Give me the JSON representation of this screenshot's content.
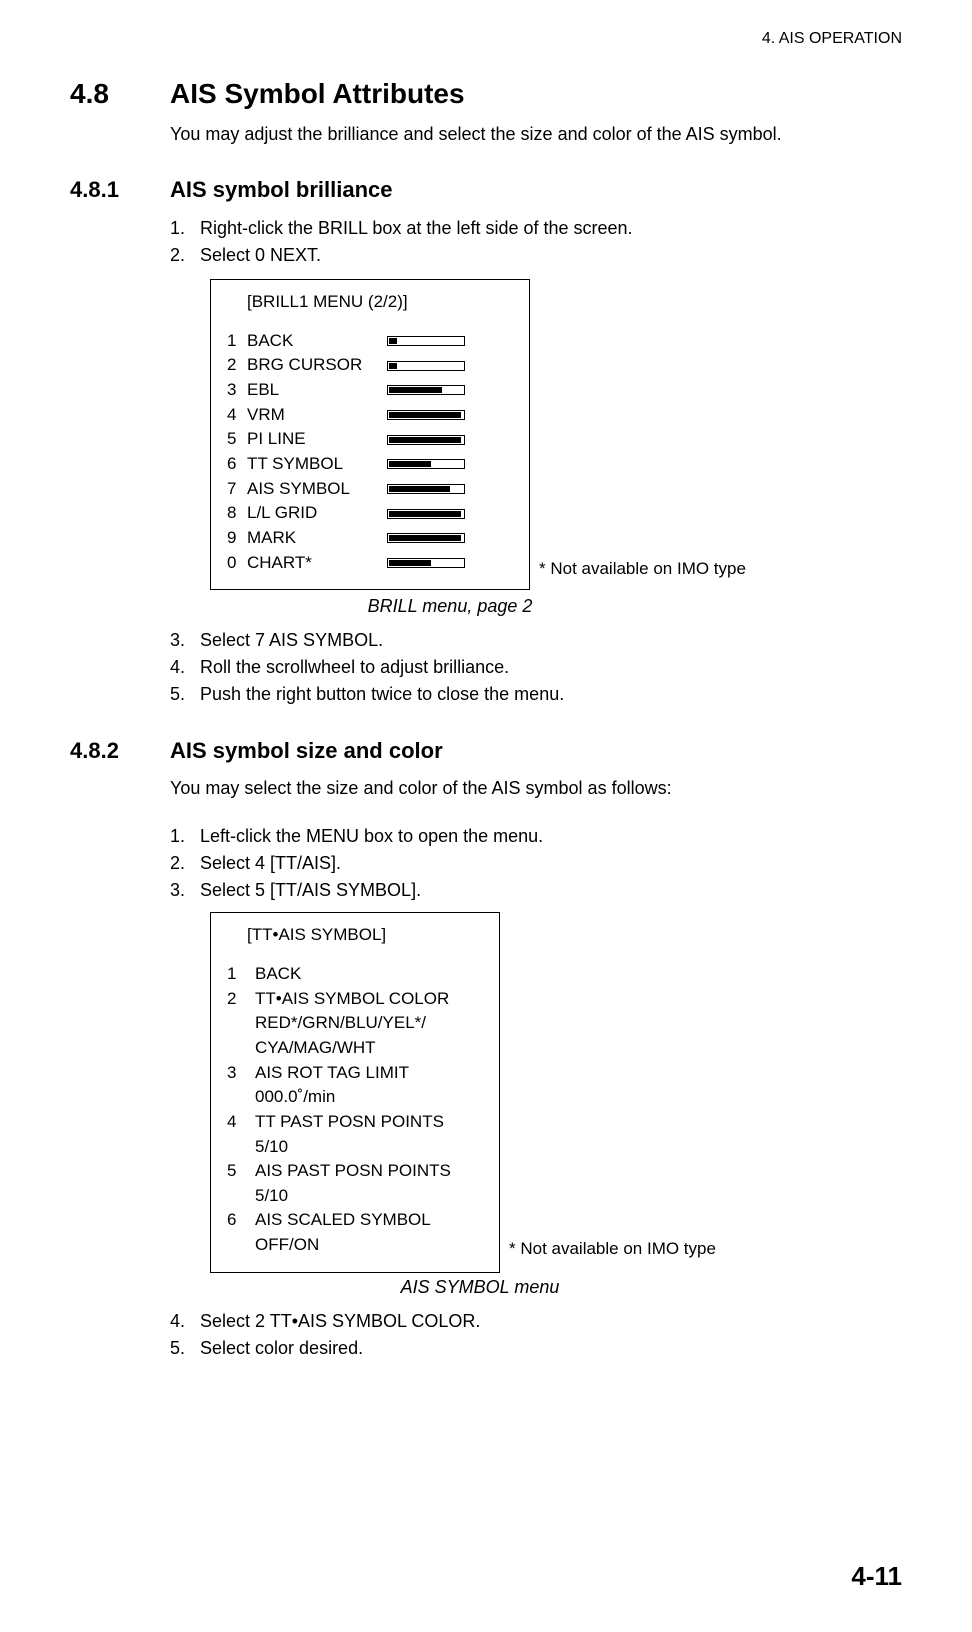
{
  "chapter_header": "4. AIS OPERATION",
  "section": {
    "num": "4.8",
    "title": "AIS Symbol Attributes"
  },
  "intro": "You may adjust the brilliance and select the size and color of the AIS symbol.",
  "sub1": {
    "num": "4.8.1",
    "title": "AIS symbol brilliance",
    "steps_a": [
      "Right-click the BRILL box at the left side of the screen.",
      "Select 0 NEXT."
    ],
    "brill_menu": {
      "title": "[BRILL1 MENU (2/2)]",
      "items": [
        {
          "n": "1",
          "label": "BACK",
          "fill_pct": 10
        },
        {
          "n": "2",
          "label": "BRG CURSOR",
          "fill_pct": 10
        },
        {
          "n": "3",
          "label": "EBL",
          "fill_pct": 70
        },
        {
          "n": "4",
          "label": "VRM",
          "fill_pct": 95
        },
        {
          "n": "5",
          "label": "PI LINE",
          "fill_pct": 95
        },
        {
          "n": "6",
          "label": "TT SYMBOL",
          "fill_pct": 55
        },
        {
          "n": "7",
          "label": "AIS SYMBOL",
          "fill_pct": 80
        },
        {
          "n": "8",
          "label": "L/L GRID",
          "fill_pct": 95
        },
        {
          "n": "9",
          "label": "MARK",
          "fill_pct": 95
        },
        {
          "n": "0",
          "label": "CHART*",
          "fill_pct": 55
        }
      ]
    },
    "note": "* Not available on IMO type",
    "caption": "BRILL menu, page 2",
    "steps_b": [
      "Select 7 AIS SYMBOL.",
      "Roll the scrollwheel to adjust brilliance.",
      "Push the right button twice to close the menu."
    ]
  },
  "sub2": {
    "num": "4.8.2",
    "title": "AIS symbol size and color",
    "intro": "You may select the size and color of the AIS symbol as follows:",
    "steps_a": [
      "Left-click the MENU box to open the menu.",
      "Select 4 [TT/AIS].",
      "Select 5 [TT/AIS SYMBOL]."
    ],
    "symbol_menu": {
      "title": "[TT•AIS SYMBOL]",
      "items": [
        {
          "n": "1",
          "lines": [
            "BACK"
          ]
        },
        {
          "n": "2",
          "lines": [
            "TT•AIS SYMBOL COLOR",
            "RED*/GRN/BLU/YEL*/",
            "CYA/MAG/WHT"
          ]
        },
        {
          "n": "3",
          "lines": [
            "AIS ROT TAG LIMIT",
            "000.0˚/min"
          ]
        },
        {
          "n": "4",
          "lines": [
            "TT PAST POSN POINTS",
            "5/10"
          ]
        },
        {
          "n": "5",
          "lines": [
            "AIS PAST POSN POINTS",
            "5/10"
          ]
        },
        {
          "n": "6",
          "lines": [
            "AIS SCALED SYMBOL",
            "OFF/ON"
          ]
        }
      ]
    },
    "note": "* Not available on IMO type",
    "caption": "AIS SYMBOL menu",
    "steps_b": [
      "Select 2 TT•AIS SYMBOL COLOR.",
      "Select color desired."
    ]
  },
  "page_number": "4-11"
}
